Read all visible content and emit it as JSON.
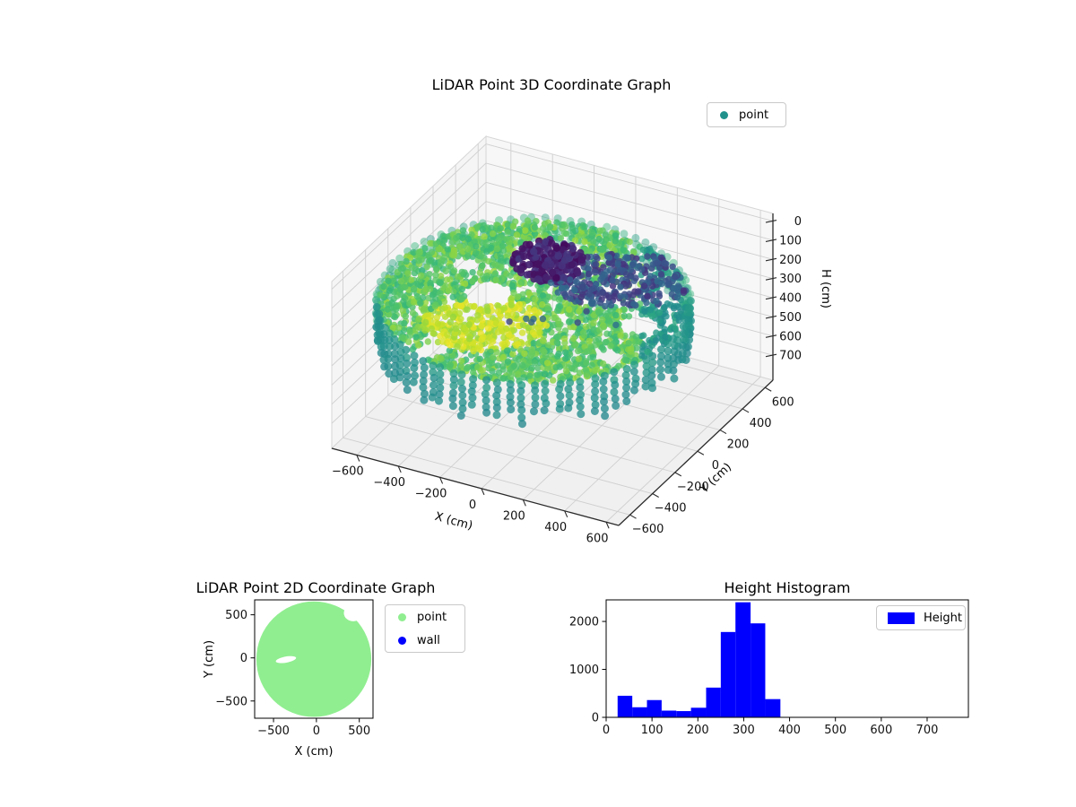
{
  "figure": {
    "background": "#ffffff"
  },
  "chart_data": [
    {
      "id": "plot3d",
      "type": "scatter3d",
      "title": "LiDAR Point 3D Coordinate Graph",
      "xlabel": "X (cm)",
      "ylabel": "Y (cm)",
      "zlabel": "H (cm)",
      "xticks": [
        -600,
        -400,
        -200,
        0,
        200,
        400,
        600
      ],
      "yticks": [
        -600,
        -400,
        -200,
        0,
        200,
        400,
        600
      ],
      "zticks": [
        0,
        100,
        200,
        300,
        400,
        500,
        600,
        700
      ],
      "xlim": [
        -720,
        660
      ],
      "ylim": [
        -700,
        670
      ],
      "zlim": [
        -40,
        830
      ],
      "zaxis_inverted": true,
      "legend": [
        {
          "label": "point",
          "color": "#21918c"
        }
      ],
      "colormap": "viridis",
      "color_by": "H (cm)",
      "color_range": [
        25,
        380
      ],
      "n_points_approx": 8630,
      "structure": {
        "disc": {
          "center_cm": [
            -30,
            -15
          ],
          "radius_cm": 640,
          "H_range_cm": [
            230,
            350
          ],
          "color": "green-yellow"
        },
        "wall_ring": {
          "radius_cm": 630,
          "H_range_cm": [
            160,
            420
          ],
          "color": "teal",
          "columns": 80
        },
        "ceiling_cluster": {
          "center_cm": [
            40,
            150
          ],
          "radius_cm": 120,
          "H_range_cm": [
            25,
            160
          ],
          "color": "dark-purple"
        }
      }
    },
    {
      "id": "plot2d",
      "type": "scatter",
      "title": "LiDAR Point 2D Coordinate Graph",
      "xlabel": "X (cm)",
      "ylabel": "Y (cm)",
      "xticks": [
        -500,
        0,
        500
      ],
      "yticks": [
        500,
        0,
        -500
      ],
      "xlim": [
        -720,
        660
      ],
      "ylim": [
        -700,
        673
      ],
      "series": [
        {
          "name": "point",
          "color": "#90ee90",
          "shape": "filled-disc",
          "center_cm": [
            -30,
            -15
          ],
          "radius_cm": 670,
          "gaps": [
            {
              "center_cm": [
                -355,
                -20
              ],
              "rx_cm": 120,
              "ry_cm": 35,
              "angle_deg": -10
            },
            {
              "center_cm": [
                430,
                520
              ],
              "rx_cm": 110,
              "ry_cm": 95,
              "angle_deg": 0
            }
          ]
        },
        {
          "name": "wall",
          "color": "#0000ff"
        }
      ]
    },
    {
      "id": "hist",
      "type": "bar",
      "title": "Height Histogram",
      "legend": [
        {
          "label": "Height",
          "color": "#0000ff"
        }
      ],
      "xlabel": "",
      "ylabel": "",
      "bin_edges": [
        25,
        57,
        89,
        121,
        153,
        185,
        218,
        250,
        282,
        315,
        347,
        380
      ],
      "counts": [
        450,
        210,
        360,
        140,
        130,
        200,
        620,
        1780,
        2400,
        1960,
        380
      ],
      "xticks": [
        0,
        100,
        200,
        300,
        400,
        500,
        600,
        700
      ],
      "yticks": [
        0,
        1000,
        2000
      ],
      "xlim": [
        0,
        790
      ],
      "ylim": [
        0,
        2450
      ],
      "grid": false
    }
  ]
}
